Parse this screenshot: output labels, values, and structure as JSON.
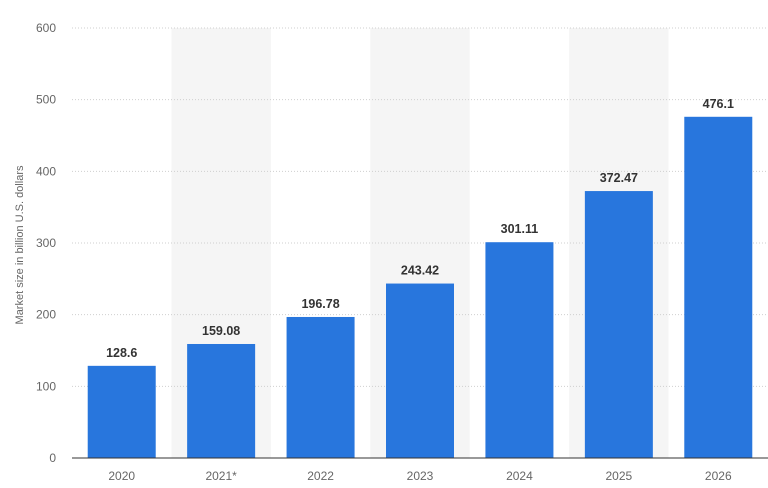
{
  "chart_data": {
    "type": "bar",
    "categories": [
      "2020",
      "2021*",
      "2022",
      "2023",
      "2024",
      "2025",
      "2026"
    ],
    "values": [
      128.6,
      159.08,
      196.78,
      243.42,
      301.11,
      372.47,
      476.1
    ],
    "value_labels": [
      "128.6",
      "159.08",
      "196.78",
      "243.42",
      "301.11",
      "372.47",
      "476.1"
    ],
    "ylabel": "Market size in billion U.S. dollars",
    "ylim": [
      0,
      600
    ],
    "yticks": [
      0,
      100,
      200,
      300,
      400,
      500,
      600
    ],
    "ytick_labels": [
      "0",
      "100",
      "200",
      "300",
      "400",
      "500",
      "600"
    ],
    "grid": "horizontal dotted",
    "alternating_band_color": "#f5f5f5",
    "bar_color": "#2876dd",
    "legend": "none"
  }
}
